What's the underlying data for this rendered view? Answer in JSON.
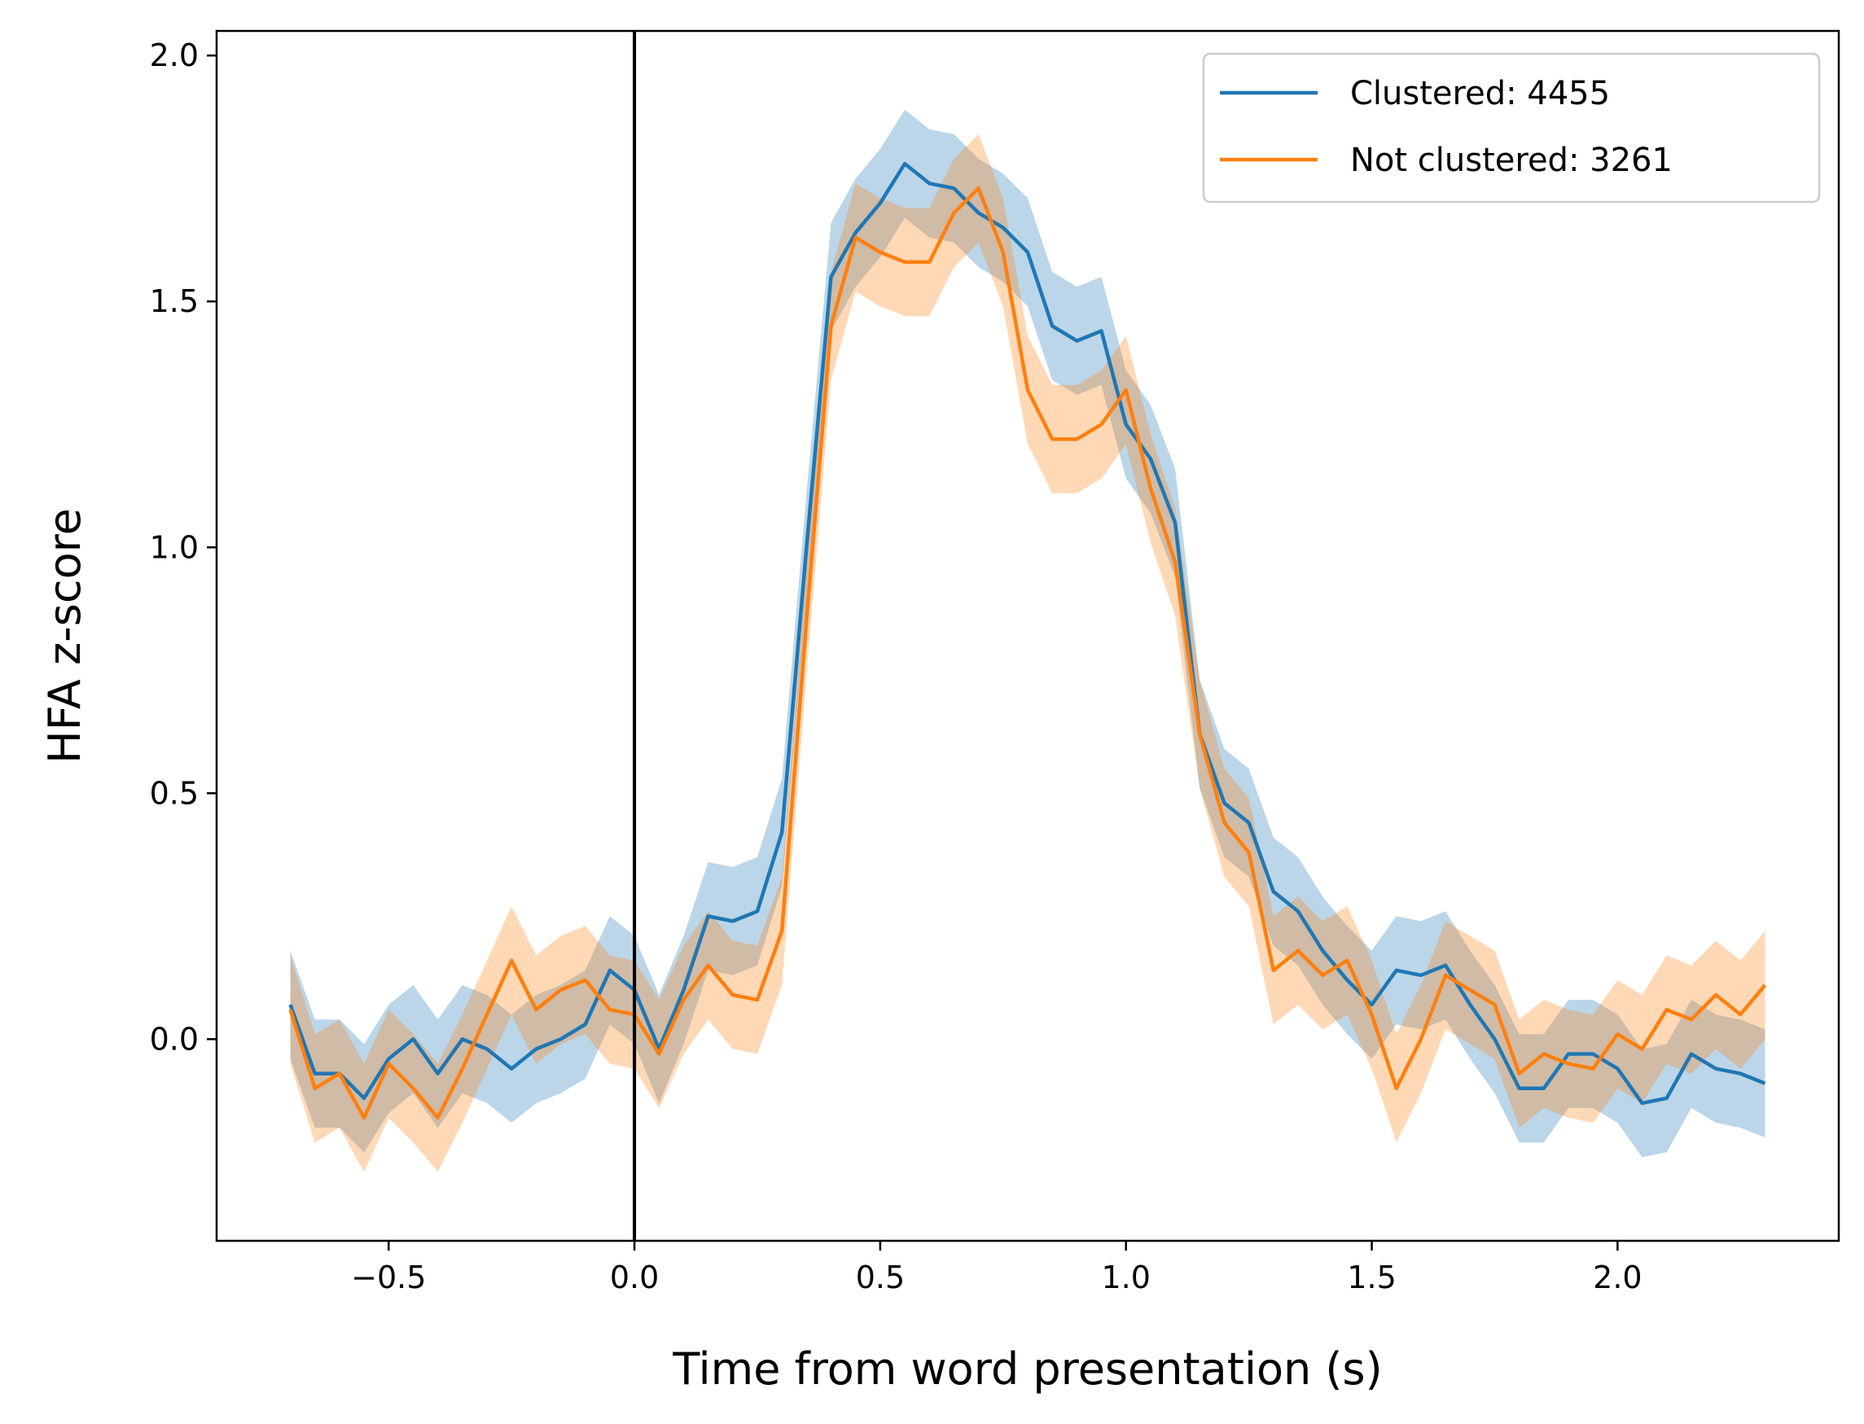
{
  "chart_data": {
    "type": "line",
    "xlabel": "Time from word presentation (s)",
    "ylabel": "HFA z-score",
    "xlim": [
      -0.85,
      2.45
    ],
    "ylim": [
      -0.41,
      2.05
    ],
    "xticks": [
      -0.5,
      0.0,
      0.5,
      1.0,
      1.5,
      2.0
    ],
    "xtick_labels": [
      "−0.5",
      "0.0",
      "0.5",
      "1.0",
      "1.5",
      "2.0"
    ],
    "yticks": [
      0.0,
      0.5,
      1.0,
      1.5,
      2.0
    ],
    "ytick_labels": [
      "0.0",
      "0.5",
      "1.0",
      "1.5",
      "2.0"
    ],
    "vline_x": 0.0,
    "grid": false,
    "legend_position": "top-right",
    "x": [
      -0.7,
      -0.65,
      -0.6,
      -0.55,
      -0.5,
      -0.45,
      -0.4,
      -0.35,
      -0.3,
      -0.25,
      -0.2,
      -0.15,
      -0.1,
      -0.05,
      0.0,
      0.05,
      0.1,
      0.15,
      0.2,
      0.25,
      0.3,
      0.35,
      0.4,
      0.45,
      0.5,
      0.55,
      0.6,
      0.65,
      0.7,
      0.75,
      0.8,
      0.85,
      0.9,
      0.95,
      1.0,
      1.05,
      1.1,
      1.15,
      1.2,
      1.25,
      1.3,
      1.35,
      1.4,
      1.45,
      1.5,
      1.55,
      1.6,
      1.65,
      1.7,
      1.75,
      1.8,
      1.85,
      1.9,
      1.95,
      2.0,
      2.05,
      2.1,
      2.15,
      2.2,
      2.25,
      2.3
    ],
    "series": [
      {
        "name": "Clustered: 4455",
        "color": "#1f77b4",
        "band_color": "#1f77b4",
        "band_halfwidth": 0.11,
        "values": [
          0.07,
          -0.07,
          -0.07,
          -0.12,
          -0.04,
          0.0,
          -0.07,
          0.0,
          -0.02,
          -0.06,
          -0.02,
          0.0,
          0.03,
          0.14,
          0.1,
          -0.02,
          0.1,
          0.25,
          0.24,
          0.26,
          0.42,
          1.0,
          1.55,
          1.64,
          1.7,
          1.78,
          1.74,
          1.73,
          1.68,
          1.65,
          1.6,
          1.45,
          1.42,
          1.44,
          1.25,
          1.18,
          1.05,
          0.62,
          0.48,
          0.44,
          0.3,
          0.26,
          0.18,
          0.12,
          0.07,
          0.14,
          0.13,
          0.15,
          0.07,
          0.0,
          -0.1,
          -0.1,
          -0.03,
          -0.03,
          -0.06,
          -0.13,
          -0.12,
          -0.03,
          -0.06,
          -0.07,
          -0.09
        ]
      },
      {
        "name": "Not clustered: 3261",
        "color": "#ff7f0e",
        "band_color": "#ff7f0e",
        "band_halfwidth": 0.11,
        "values": [
          0.06,
          -0.1,
          -0.07,
          -0.16,
          -0.05,
          -0.1,
          -0.16,
          -0.06,
          0.05,
          0.16,
          0.06,
          0.1,
          0.12,
          0.06,
          0.05,
          -0.03,
          0.08,
          0.15,
          0.09,
          0.08,
          0.22,
          0.85,
          1.45,
          1.63,
          1.6,
          1.58,
          1.58,
          1.68,
          1.73,
          1.6,
          1.32,
          1.22,
          1.22,
          1.25,
          1.32,
          1.12,
          0.97,
          0.62,
          0.44,
          0.38,
          0.14,
          0.18,
          0.13,
          0.16,
          0.05,
          -0.1,
          0.0,
          0.13,
          0.1,
          0.07,
          -0.07,
          -0.03,
          -0.05,
          -0.06,
          0.01,
          -0.02,
          0.06,
          0.04,
          0.09,
          0.05,
          0.11
        ]
      }
    ]
  }
}
